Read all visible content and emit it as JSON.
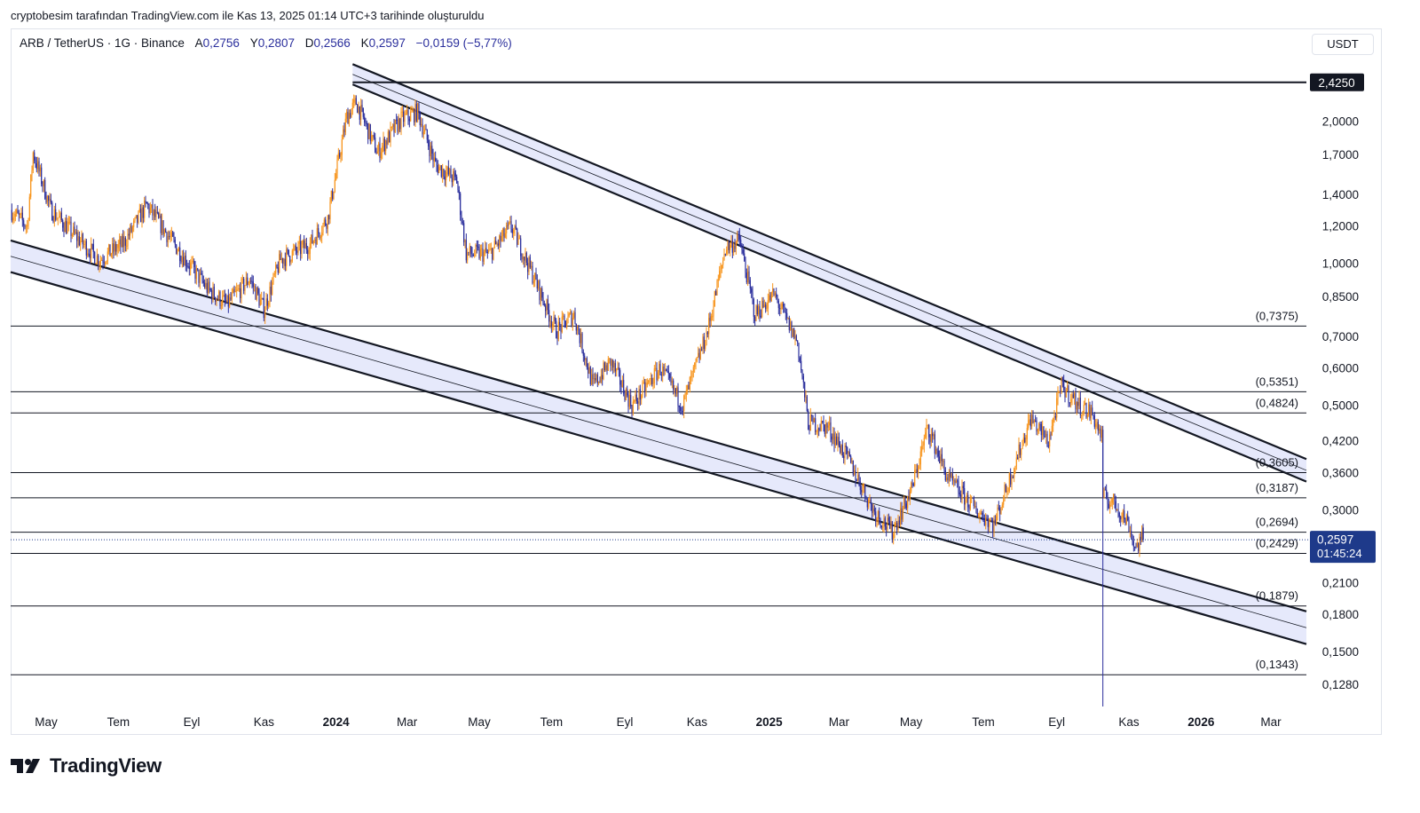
{
  "caption": "cryptobesim tarafından TradingView.com ile Kas 13, 2025 01:14 UTC+3 tarihinde oluşturuldu",
  "legend": {
    "symbol": "ARB / TetherUS · 1G · Binance",
    "open_label": "A",
    "open": "0,2756",
    "high_label": "Y",
    "high": "0,2807",
    "low_label": "D",
    "low": "0,2566",
    "close_label": "K",
    "close": "0,2597",
    "change": "−0,0159 (−5,77%)"
  },
  "currency": "USDT",
  "brand": {
    "name": "TradingView",
    "icon": "tradingview-logo-icon"
  },
  "colors": {
    "up": "#f7931a",
    "down": "#2a2e9c",
    "channel_fill": "#e6e9fb",
    "price_tag": "#1e3a8a"
  },
  "chart_data": {
    "type": "candlestick",
    "scale": "log",
    "ylim": [
      0.115,
      2.7
    ],
    "xlim": [
      "2023-04-01",
      "2026-03-31"
    ],
    "grid": false,
    "x_ticks": [
      {
        "date": "2023-05-01",
        "label": "May",
        "bold": false
      },
      {
        "date": "2023-07-01",
        "label": "Tem",
        "bold": false
      },
      {
        "date": "2023-09-01",
        "label": "Eyl",
        "bold": false
      },
      {
        "date": "2023-11-01",
        "label": "Kas",
        "bold": false
      },
      {
        "date": "2024-01-01",
        "label": "2024",
        "bold": true
      },
      {
        "date": "2024-03-01",
        "label": "Mar",
        "bold": false
      },
      {
        "date": "2024-05-01",
        "label": "May",
        "bold": false
      },
      {
        "date": "2024-07-01",
        "label": "Tem",
        "bold": false
      },
      {
        "date": "2024-09-01",
        "label": "Eyl",
        "bold": false
      },
      {
        "date": "2024-11-01",
        "label": "Kas",
        "bold": false
      },
      {
        "date": "2025-01-01",
        "label": "2025",
        "bold": true
      },
      {
        "date": "2025-03-01",
        "label": "Mar",
        "bold": false
      },
      {
        "date": "2025-05-01",
        "label": "May",
        "bold": false
      },
      {
        "date": "2025-07-01",
        "label": "Tem",
        "bold": false
      },
      {
        "date": "2025-09-01",
        "label": "Eyl",
        "bold": false
      },
      {
        "date": "2025-11-01",
        "label": "Kas",
        "bold": false
      },
      {
        "date": "2026-01-01",
        "label": "2026",
        "bold": true
      },
      {
        "date": "2026-03-01",
        "label": "Mar",
        "bold": false
      }
    ],
    "y_ticks": [
      {
        "value": 2.0,
        "label": "2,0000"
      },
      {
        "value": 1.7,
        "label": "1,7000"
      },
      {
        "value": 1.4,
        "label": "1,4000"
      },
      {
        "value": 1.2,
        "label": "1,2000"
      },
      {
        "value": 1.0,
        "label": "1,0000"
      },
      {
        "value": 0.85,
        "label": "0,8500"
      },
      {
        "value": 0.7,
        "label": "0,7000"
      },
      {
        "value": 0.6,
        "label": "0,6000"
      },
      {
        "value": 0.5,
        "label": "0,5000"
      },
      {
        "value": 0.42,
        "label": "0,4200"
      },
      {
        "value": 0.36,
        "label": "0,3600"
      },
      {
        "value": 0.3,
        "label": "0,3000"
      },
      {
        "value": 0.21,
        "label": "0,2100"
      },
      {
        "value": 0.18,
        "label": "0,1800"
      },
      {
        "value": 0.15,
        "label": "0,1500"
      },
      {
        "value": 0.128,
        "label": "0,1280"
      }
    ],
    "horizontal_levels": [
      {
        "value": 2.425,
        "label": "2,4250",
        "style": "tag"
      },
      {
        "value": 0.7375,
        "label": "(0,7375)"
      },
      {
        "value": 0.5351,
        "label": "(0,5351)"
      },
      {
        "value": 0.4824,
        "label": "(0,4824)"
      },
      {
        "value": 0.3605,
        "label": "(0,3605)"
      },
      {
        "value": 0.3187,
        "label": "(0,3187)"
      },
      {
        "value": 0.2694,
        "label": "(0,2694)"
      },
      {
        "value": 0.2429,
        "label": "(0,2429)"
      },
      {
        "value": 0.1879,
        "label": "(0,1879)"
      },
      {
        "value": 0.1343,
        "label": "(0,1343)"
      }
    ],
    "channels": [
      {
        "name": "upper",
        "outer": [
          [
            "2024-01-15",
            2.65
          ],
          [
            "2026-03-31",
            0.385
          ]
        ],
        "inner": [
          [
            "2024-01-15",
            2.4
          ],
          [
            "2026-03-31",
            0.345
          ]
        ]
      },
      {
        "name": "lower",
        "outer": [
          [
            "2023-04-01",
            1.12
          ],
          [
            "2026-03-31",
            0.183
          ]
        ],
        "inner": [
          [
            "2023-04-01",
            0.96
          ],
          [
            "2026-03-31",
            0.156
          ]
        ]
      }
    ],
    "current_price": {
      "value": 0.2597,
      "label": "0,2597",
      "countdown": "01:45:24"
    },
    "price_path": [
      [
        "2023-04-01",
        1.3
      ],
      [
        "2023-04-15",
        1.2
      ],
      [
        "2023-04-20",
        1.72
      ],
      [
        "2023-05-05",
        1.3
      ],
      [
        "2023-05-25",
        1.15
      ],
      [
        "2023-06-15",
        1.02
      ],
      [
        "2023-07-05",
        1.1
      ],
      [
        "2023-07-25",
        1.33
      ],
      [
        "2023-08-15",
        1.12
      ],
      [
        "2023-09-01",
        0.98
      ],
      [
        "2023-09-15",
        0.88
      ],
      [
        "2023-10-01",
        0.82
      ],
      [
        "2023-10-20",
        0.93
      ],
      [
        "2023-11-01",
        0.8
      ],
      [
        "2023-11-15",
        1.02
      ],
      [
        "2023-12-10",
        1.1
      ],
      [
        "2023-12-25",
        1.25
      ],
      [
        "2024-01-10",
        2.05
      ],
      [
        "2024-01-18",
        2.2
      ],
      [
        "2024-02-05",
        1.72
      ],
      [
        "2024-02-25",
        2.02
      ],
      [
        "2024-03-10",
        2.1
      ],
      [
        "2024-03-25",
        1.62
      ],
      [
        "2024-04-12",
        1.5
      ],
      [
        "2024-04-20",
        1.05
      ],
      [
        "2024-05-10",
        1.05
      ],
      [
        "2024-05-28",
        1.2
      ],
      [
        "2024-06-15",
        0.95
      ],
      [
        "2024-07-05",
        0.72
      ],
      [
        "2024-07-20",
        0.78
      ],
      [
        "2024-08-05",
        0.55
      ],
      [
        "2024-08-20",
        0.62
      ],
      [
        "2024-09-07",
        0.5
      ],
      [
        "2024-10-01",
        0.6
      ],
      [
        "2024-10-20",
        0.5
      ],
      [
        "2024-11-10",
        0.72
      ],
      [
        "2024-11-25",
        1.08
      ],
      [
        "2024-12-07",
        1.12
      ],
      [
        "2024-12-20",
        0.78
      ],
      [
        "2025-01-05",
        0.86
      ],
      [
        "2025-01-25",
        0.68
      ],
      [
        "2025-02-03",
        0.46
      ],
      [
        "2025-02-20",
        0.45
      ],
      [
        "2025-03-10",
        0.38
      ],
      [
        "2025-03-30",
        0.3
      ],
      [
        "2025-04-15",
        0.27
      ],
      [
        "2025-05-01",
        0.33
      ],
      [
        "2025-05-15",
        0.45
      ],
      [
        "2025-06-01",
        0.35
      ],
      [
        "2025-06-25",
        0.3
      ],
      [
        "2025-07-10",
        0.28
      ],
      [
        "2025-07-25",
        0.36
      ],
      [
        "2025-08-10",
        0.47
      ],
      [
        "2025-08-25",
        0.42
      ],
      [
        "2025-09-05",
        0.55
      ],
      [
        "2025-09-20",
        0.5
      ],
      [
        "2025-10-01",
        0.48
      ],
      [
        "2025-10-09",
        0.43
      ],
      [
        "2025-10-10",
        0.32
      ],
      [
        "2025-10-20",
        0.31
      ],
      [
        "2025-11-01",
        0.28
      ],
      [
        "2025-11-06",
        0.25
      ],
      [
        "2025-11-13",
        0.2597
      ]
    ]
  }
}
